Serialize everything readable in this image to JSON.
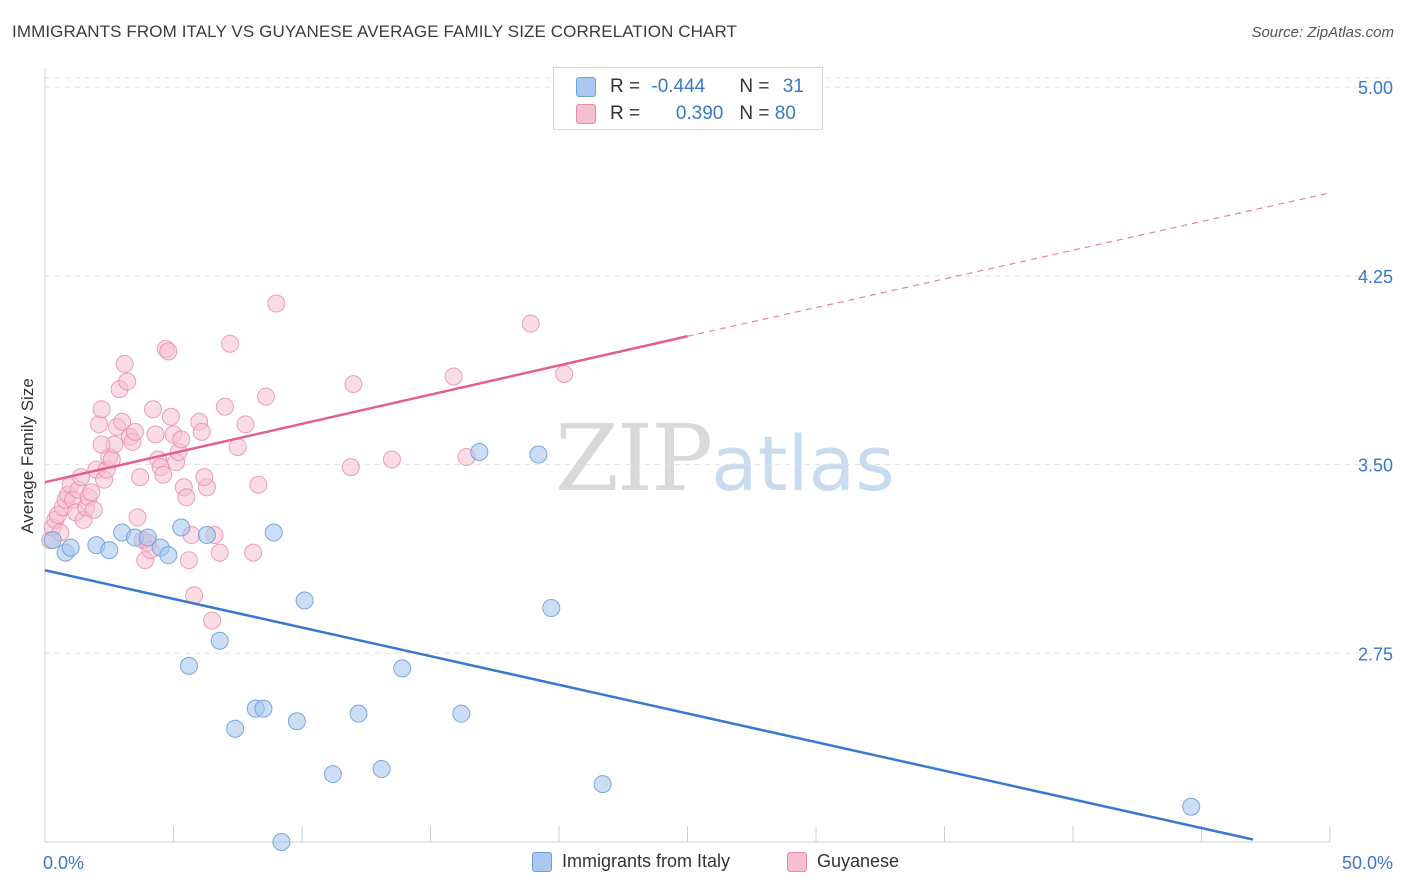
{
  "header": {
    "title": "IMMIGRANTS FROM ITALY VS GUYANESE AVERAGE FAMILY SIZE CORRELATION CHART",
    "source": "Source: ZipAtlas.com"
  },
  "watermark": {
    "zip": "ZIP",
    "atlas": "atlas"
  },
  "stats": {
    "italy": {
      "r_label": "R = ",
      "r_value": "-0.444",
      "n_label": "N = ",
      "n_value": "31"
    },
    "guyanese": {
      "r_label": "R = ",
      "r_value": "0.390",
      "n_label": "N = ",
      "n_value": "80"
    }
  },
  "colors": {
    "italy_fill": "#a9c8ef",
    "italy_stroke": "#6f9fd8",
    "italy_line": "#3a78d0",
    "guyanese_fill": "#f6bfd0",
    "guyanese_stroke": "#e98aa8",
    "guyanese_line": "#e4608a",
    "tick_label": "#3a78c9",
    "grid": "#e0e0e0"
  },
  "chart_data": {
    "type": "scatter",
    "title": "IMMIGRANTS FROM ITALY VS GUYANESE AVERAGE FAMILY SIZE CORRELATION CHART",
    "xlabel": "",
    "ylabel": "Average Family Size",
    "xlim": [
      0,
      50
    ],
    "ylim": [
      2.0,
      5.1
    ],
    "x_tick_labels": [
      "0.0%",
      "50.0%"
    ],
    "y_ticks": [
      2.75,
      3.5,
      4.25,
      5.0
    ],
    "y_tick_labels": [
      "2.75",
      "3.50",
      "4.25",
      "5.00"
    ],
    "grid": true,
    "legend": "bottom",
    "series": [
      {
        "name": "Immigrants from Italy",
        "points": [
          [
            0.3,
            3.2
          ],
          [
            0.8,
            3.15
          ],
          [
            1.0,
            3.17
          ],
          [
            2.0,
            3.18
          ],
          [
            2.5,
            3.16
          ],
          [
            3.0,
            3.23
          ],
          [
            3.5,
            3.21
          ],
          [
            4.0,
            3.21
          ],
          [
            4.5,
            3.17
          ],
          [
            4.8,
            3.14
          ],
          [
            5.3,
            3.25
          ],
          [
            6.3,
            3.22
          ],
          [
            8.9,
            3.23
          ],
          [
            10.1,
            2.96
          ],
          [
            6.8,
            2.8
          ],
          [
            5.6,
            2.7
          ],
          [
            7.4,
            2.45
          ],
          [
            8.2,
            2.53
          ],
          [
            8.5,
            2.53
          ],
          [
            9.8,
            2.48
          ],
          [
            11.2,
            2.27
          ],
          [
            12.2,
            2.51
          ],
          [
            13.1,
            2.29
          ],
          [
            13.9,
            2.69
          ],
          [
            16.2,
            2.51
          ],
          [
            16.9,
            3.55
          ],
          [
            19.2,
            3.54
          ],
          [
            19.7,
            2.93
          ],
          [
            21.7,
            2.23
          ],
          [
            44.6,
            2.14
          ],
          [
            9.2,
            2.0
          ]
        ],
        "trend": {
          "x": [
            0,
            47
          ],
          "y": [
            3.08,
            2.01
          ]
        }
      },
      {
        "name": "Guyanese",
        "points": [
          [
            0.2,
            3.2
          ],
          [
            0.3,
            3.25
          ],
          [
            0.4,
            3.28
          ],
          [
            0.5,
            3.3
          ],
          [
            0.6,
            3.23
          ],
          [
            0.7,
            3.33
          ],
          [
            0.8,
            3.36
          ],
          [
            0.9,
            3.38
          ],
          [
            1.0,
            3.42
          ],
          [
            1.1,
            3.36
          ],
          [
            1.2,
            3.31
          ],
          [
            1.3,
            3.4
          ],
          [
            1.4,
            3.45
          ],
          [
            1.5,
            3.28
          ],
          [
            1.6,
            3.33
          ],
          [
            1.7,
            3.37
          ],
          [
            1.8,
            3.39
          ],
          [
            1.9,
            3.32
          ],
          [
            2.0,
            3.48
          ],
          [
            2.1,
            3.66
          ],
          [
            2.2,
            3.72
          ],
          [
            2.3,
            3.44
          ],
          [
            2.4,
            3.48
          ],
          [
            2.5,
            3.53
          ],
          [
            2.6,
            3.52
          ],
          [
            2.7,
            3.58
          ],
          [
            2.8,
            3.65
          ],
          [
            2.9,
            3.8
          ],
          [
            3.0,
            3.67
          ],
          [
            3.1,
            3.9
          ],
          [
            3.2,
            3.83
          ],
          [
            3.3,
            3.61
          ],
          [
            3.4,
            3.59
          ],
          [
            3.5,
            3.63
          ],
          [
            3.6,
            3.29
          ],
          [
            3.7,
            3.45
          ],
          [
            3.8,
            3.2
          ],
          [
            3.9,
            3.12
          ],
          [
            4.0,
            3.19
          ],
          [
            4.1,
            3.16
          ],
          [
            4.2,
            3.72
          ],
          [
            4.3,
            3.62
          ],
          [
            4.4,
            3.52
          ],
          [
            4.5,
            3.49
          ],
          [
            4.6,
            3.46
          ],
          [
            4.7,
            3.96
          ],
          [
            4.8,
            3.95
          ],
          [
            4.9,
            3.69
          ],
          [
            5.0,
            3.62
          ],
          [
            5.1,
            3.51
          ],
          [
            5.2,
            3.55
          ],
          [
            5.3,
            3.6
          ],
          [
            5.4,
            3.41
          ],
          [
            5.5,
            3.37
          ],
          [
            5.6,
            3.12
          ],
          [
            5.7,
            3.22
          ],
          [
            5.8,
            2.98
          ],
          [
            6.0,
            3.67
          ],
          [
            6.1,
            3.63
          ],
          [
            6.3,
            3.41
          ],
          [
            6.5,
            2.88
          ],
          [
            6.6,
            3.22
          ],
          [
            6.8,
            3.15
          ],
          [
            7.0,
            3.73
          ],
          [
            7.2,
            3.98
          ],
          [
            7.5,
            3.57
          ],
          [
            7.8,
            3.66
          ],
          [
            8.1,
            3.15
          ],
          [
            8.3,
            3.42
          ],
          [
            8.6,
            3.77
          ],
          [
            9.0,
            4.14
          ],
          [
            11.9,
            3.49
          ],
          [
            12.0,
            3.82
          ],
          [
            13.5,
            3.52
          ],
          [
            15.9,
            3.85
          ],
          [
            16.4,
            3.53
          ],
          [
            18.9,
            4.06
          ],
          [
            20.2,
            3.86
          ],
          [
            6.2,
            3.45
          ],
          [
            2.2,
            3.58
          ]
        ],
        "trend": {
          "x": [
            0,
            25
          ],
          "y": [
            3.43,
            4.01
          ]
        },
        "trend_extension": {
          "x": [
            25,
            50
          ],
          "y": [
            4.01,
            4.58
          ]
        }
      }
    ]
  }
}
